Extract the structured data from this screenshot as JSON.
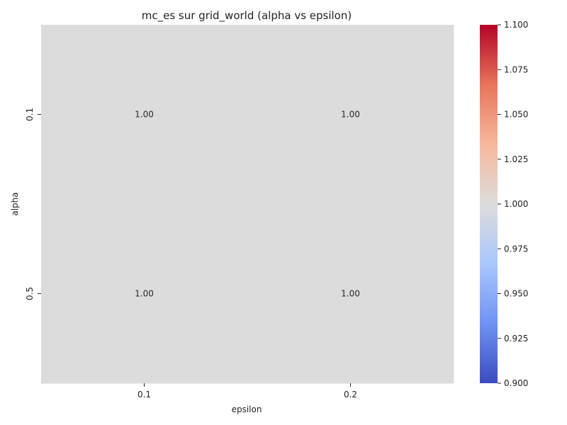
{
  "chart_data": {
    "type": "heatmap",
    "title": "mc_es sur grid_world (alpha vs epsilon)",
    "xlabel": "epsilon",
    "ylabel": "alpha",
    "x_categories": [
      "0.1",
      "0.2"
    ],
    "y_categories": [
      "0.1",
      "0.5"
    ],
    "values": [
      [
        1.0,
        1.0
      ],
      [
        1.0,
        1.0
      ]
    ],
    "annotations": [
      [
        "1.00",
        "1.00"
      ],
      [
        "1.00",
        "1.00"
      ]
    ],
    "colormap": "coolwarm",
    "colormap_stops": [
      "#3b4cc0",
      "#6f92f3",
      "#aac7fd",
      "#dddcdc",
      "#f7b89c",
      "#e7745b",
      "#b40426"
    ],
    "cell_color": "#dddcdc",
    "colorbar": {
      "range": [
        0.9,
        1.1
      ],
      "ticks": [
        0.9,
        0.925,
        0.95,
        0.975,
        1.0,
        1.025,
        1.05,
        1.075,
        1.1
      ],
      "tick_labels": [
        "0.900",
        "0.925",
        "0.950",
        "0.975",
        "1.000",
        "1.025",
        "1.050",
        "1.075",
        "1.100"
      ]
    },
    "grid": false,
    "legend": "none"
  }
}
